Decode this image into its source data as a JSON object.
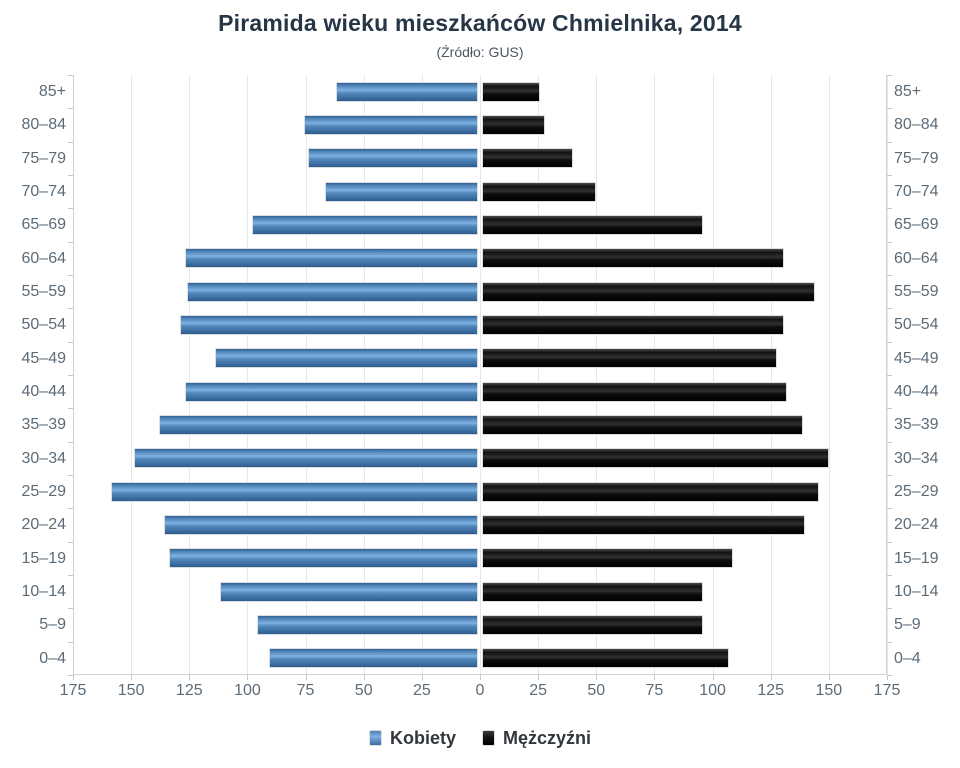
{
  "title": "Piramida wieku mieszkańców Chmielnika, 2014",
  "subtitle": "(Źródło: GUS)",
  "legend": {
    "position": "bottom",
    "items": [
      {
        "label": "Kobiety",
        "color": "#4572A7"
      },
      {
        "label": "Mężczyźni",
        "color": "#000000"
      }
    ]
  },
  "x_axis": {
    "tick_labels": [
      "175",
      "150",
      "125",
      "100",
      "75",
      "50",
      "25",
      "0",
      "25",
      "50",
      "75",
      "100",
      "125",
      "150",
      "175"
    ],
    "tick_interval": 25,
    "max_each_side": 175
  },
  "chart_data": {
    "type": "bar",
    "subtype": "population-pyramid",
    "title": "Piramida wieku mieszkańców Chmielnika, 2014",
    "subtitle": "(Źródło: GUS)",
    "categories": [
      "85+",
      "80–84",
      "75–79",
      "70–74",
      "65–69",
      "60–64",
      "55–59",
      "50–54",
      "45–49",
      "40–44",
      "35–39",
      "30–34",
      "25–29",
      "20–24",
      "15–19",
      "10–14",
      "5–9",
      "0–4"
    ],
    "series": [
      {
        "name": "Kobiety",
        "side": "left",
        "color": "#4572A7",
        "values": [
          61,
          75,
          73,
          66,
          97,
          126,
          125,
          128,
          113,
          126,
          137,
          148,
          158,
          135,
          133,
          111,
          95,
          90
        ]
      },
      {
        "name": "Mężczyźni",
        "side": "right",
        "color": "#000000",
        "values": [
          25,
          27,
          39,
          49,
          95,
          130,
          143,
          130,
          127,
          131,
          138,
          149,
          145,
          139,
          108,
          95,
          95,
          106
        ]
      }
    ],
    "xlim": [
      0,
      175
    ],
    "grid": true,
    "legend_position": "bottom"
  }
}
